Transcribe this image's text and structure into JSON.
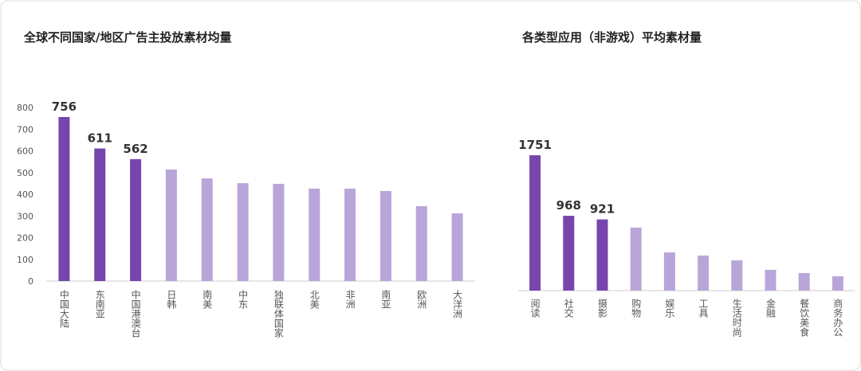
{
  "chart_data": [
    {
      "type": "bar",
      "title": "全球不同国家/地区广告主投放素材均量",
      "categories": [
        "中国大陆",
        "东南亚",
        "中国港澳台",
        "日韩",
        "南美",
        "中东",
        "独联体国家",
        "北美",
        "非洲",
        "南亚",
        "欧洲",
        "大洋洲"
      ],
      "values": [
        756,
        611,
        562,
        514,
        473,
        451,
        448,
        426,
        426,
        415,
        345,
        312
      ],
      "color": "#b9a6d8",
      "highlight_color": "#7646ae",
      "highlight_count": 3,
      "ylim": [
        0,
        800
      ],
      "yticks": [
        0,
        100,
        200,
        300,
        400,
        500,
        600,
        700,
        800
      ]
    },
    {
      "type": "bar",
      "title": "各类型应用（非游戏）平均素材量",
      "categories": [
        "阅读",
        "社交",
        "摄影",
        "购物",
        "娱乐",
        "工具",
        "生活时尚",
        "金融",
        "餐饮美食",
        "商务办公"
      ],
      "values": [
        1751,
        968,
        921,
        814,
        494,
        453,
        391,
        268,
        227,
        185
      ],
      "color": "#b9a6d8",
      "highlight_color": "#7646ae",
      "highlight_count": 3
    }
  ]
}
